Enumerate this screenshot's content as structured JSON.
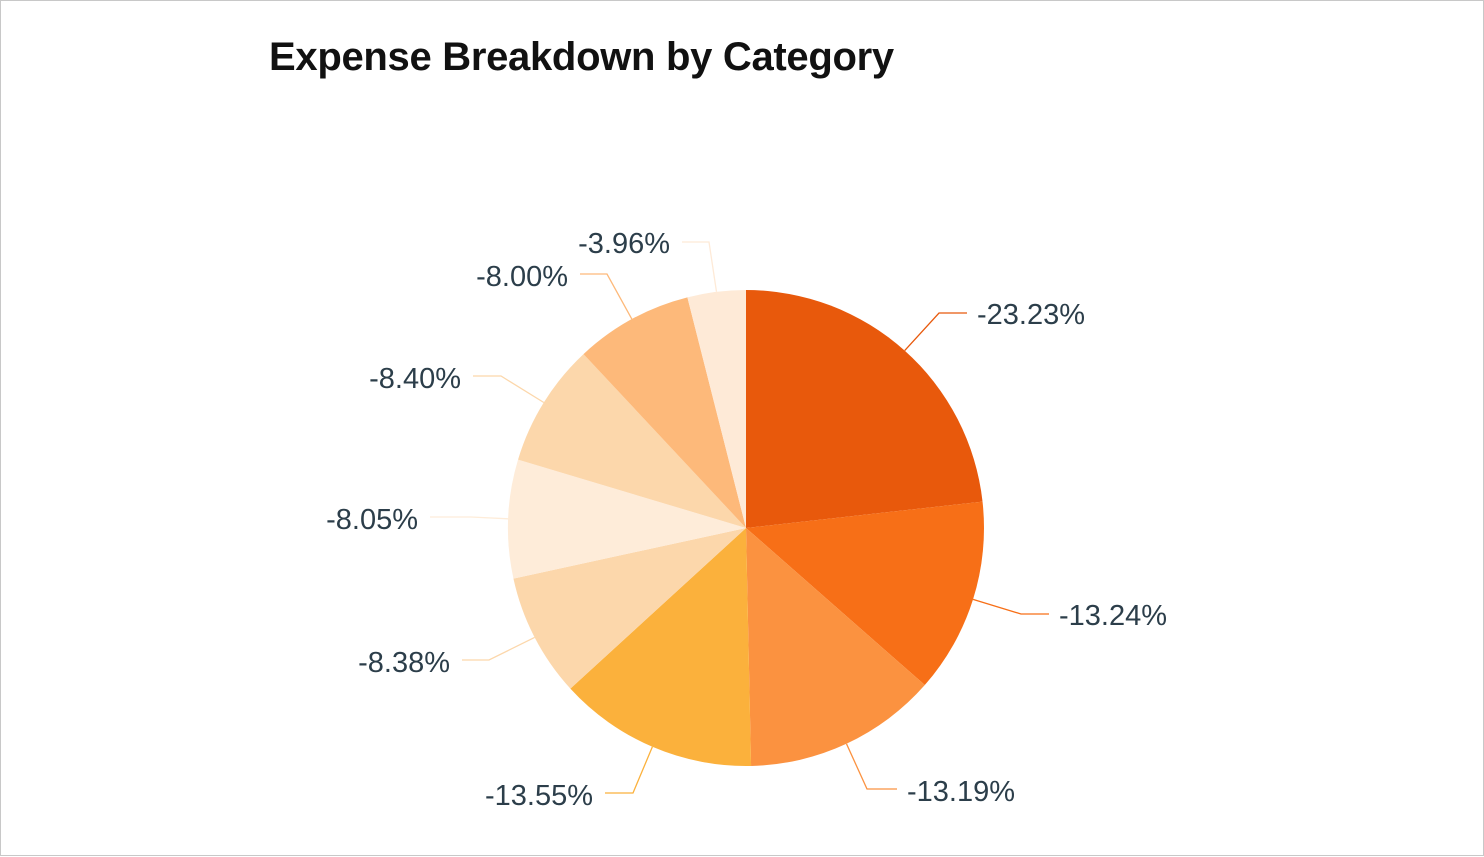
{
  "chart": {
    "title": "Expense Breakdown by Category"
  },
  "chart_data": {
    "type": "pie",
    "title": "Expense Breakdown by Category",
    "start_angle_deg": 0,
    "direction": "clockwise",
    "legend": "none",
    "slices": [
      {
        "label": "-23.23%",
        "value": 23.23,
        "color": "#e8590c"
      },
      {
        "label": "-13.24%",
        "value": 13.24,
        "color": "#f76f17"
      },
      {
        "label": "-13.19%",
        "value": 13.19,
        "color": "#fb9240"
      },
      {
        "label": "-13.55%",
        "value": 13.55,
        "color": "#fbb13c"
      },
      {
        "label": "-8.38%",
        "value": 8.38,
        "color": "#fcd7ab"
      },
      {
        "label": "-8.05%",
        "value": 8.05,
        "color": "#feecd9"
      },
      {
        "label": "-8.40%",
        "value": 8.4,
        "color": "#fcd7ab"
      },
      {
        "label": "-8.00%",
        "value": 8.0,
        "color": "#fdb97a"
      },
      {
        "label": "-3.96%",
        "value": 3.96,
        "color": "#feead7"
      }
    ],
    "label_color": "#2c3e4a"
  }
}
